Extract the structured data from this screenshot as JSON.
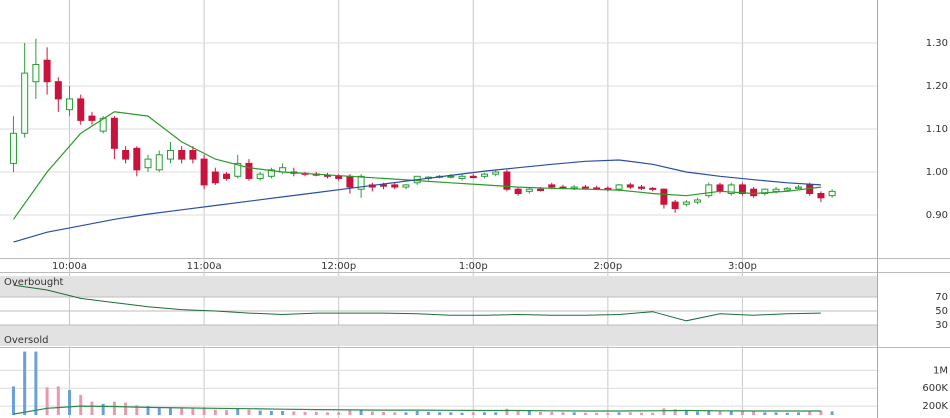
{
  "chart_data": [
    {
      "type": "candlestick",
      "x": [
        575,
        580,
        585,
        590,
        595,
        600,
        605,
        610,
        615,
        620,
        625,
        630,
        635,
        640,
        645,
        650,
        655,
        660,
        665,
        670,
        675,
        680,
        685,
        690,
        695,
        700,
        705,
        710,
        715,
        720,
        725,
        730,
        735,
        740,
        745,
        750,
        755,
        760,
        765,
        770,
        775,
        780,
        785,
        790,
        795,
        800,
        805,
        810,
        815,
        820,
        825,
        830,
        835,
        840,
        845,
        850,
        855,
        860,
        865,
        870,
        875,
        880,
        885,
        890,
        895,
        900,
        905,
        910,
        915,
        920,
        925,
        930,
        935,
        940
      ],
      "open": [
        1.02,
        1.09,
        1.21,
        1.26,
        1.21,
        1.145,
        1.17,
        1.13,
        1.095,
        1.125,
        1.05,
        1.055,
        1.01,
        1.005,
        1.03,
        1.05,
        1.05,
        1.03,
        1.0,
        0.995,
        0.99,
        1.02,
        0.985,
        0.99,
        1.0,
        1.0,
        0.997,
        0.995,
        0.993,
        0.99,
        0.99,
        0.96,
        0.97,
        0.97,
        0.97,
        0.965,
        0.975,
        0.985,
        0.99,
        0.99,
        0.985,
        0.99,
        0.99,
        0.995,
        1.0,
        0.96,
        0.955,
        0.96,
        0.97,
        0.965,
        0.962,
        0.965,
        0.963,
        0.962,
        0.96,
        0.97,
        0.965,
        0.962,
        0.96,
        0.93,
        0.925,
        0.93,
        0.945,
        0.97,
        0.95,
        0.97,
        0.96,
        0.95,
        0.955,
        0.958,
        0.962,
        0.97,
        0.95,
        0.945
      ],
      "high": [
        1.13,
        1.3,
        1.31,
        1.29,
        1.22,
        1.2,
        1.18,
        1.14,
        1.13,
        1.13,
        1.06,
        1.06,
        1.04,
        1.05,
        1.07,
        1.06,
        1.06,
        1.04,
        1.01,
        1.0,
        1.04,
        1.03,
        1.0,
        1.01,
        1.02,
        1.01,
        1.0,
        1.0,
        0.998,
        0.995,
        0.995,
        0.995,
        0.975,
        0.975,
        0.975,
        0.972,
        0.99,
        0.99,
        0.993,
        0.995,
        0.995,
        0.995,
        0.998,
        1.005,
        1.005,
        0.965,
        0.965,
        0.965,
        0.975,
        0.97,
        0.97,
        0.97,
        0.968,
        0.967,
        0.972,
        0.975,
        0.97,
        0.965,
        0.962,
        0.935,
        0.935,
        0.94,
        0.975,
        0.975,
        0.975,
        0.975,
        0.965,
        0.962,
        0.965,
        0.965,
        0.97,
        0.975,
        0.955,
        0.96
      ],
      "low": [
        1.0,
        1.08,
        1.17,
        1.18,
        1.14,
        1.13,
        1.11,
        1.11,
        1.09,
        1.03,
        1.02,
        0.99,
        1.0,
        1.0,
        1.02,
        1.02,
        1.02,
        0.96,
        0.97,
        0.98,
        0.985,
        0.98,
        0.98,
        0.985,
        0.995,
        0.99,
        0.99,
        0.99,
        0.985,
        0.98,
        0.95,
        0.94,
        0.955,
        0.96,
        0.96,
        0.96,
        0.97,
        0.98,
        0.985,
        0.985,
        0.98,
        0.985,
        0.985,
        0.99,
        0.955,
        0.945,
        0.95,
        0.955,
        0.96,
        0.96,
        0.958,
        0.96,
        0.958,
        0.955,
        0.955,
        0.96,
        0.958,
        0.955,
        0.915,
        0.905,
        0.92,
        0.925,
        0.94,
        0.95,
        0.945,
        0.945,
        0.94,
        0.945,
        0.95,
        0.955,
        0.96,
        0.945,
        0.93,
        0.94
      ],
      "close": [
        1.09,
        1.23,
        1.25,
        1.21,
        1.17,
        1.17,
        1.12,
        1.12,
        1.125,
        1.055,
        1.03,
        1.005,
        1.03,
        1.04,
        1.05,
        1.03,
        1.03,
        0.97,
        0.975,
        0.985,
        1.02,
        0.985,
        0.995,
        1.005,
        1.01,
        0.997,
        0.995,
        0.993,
        0.99,
        0.985,
        0.965,
        0.99,
        0.965,
        0.967,
        0.965,
        0.97,
        0.99,
        0.988,
        0.99,
        0.99,
        0.99,
        0.987,
        0.995,
        1.0,
        0.96,
        0.95,
        0.96,
        0.957,
        0.965,
        0.962,
        0.965,
        0.963,
        0.962,
        0.96,
        0.97,
        0.965,
        0.962,
        0.96,
        0.925,
        0.915,
        0.93,
        0.935,
        0.97,
        0.955,
        0.97,
        0.95,
        0.945,
        0.96,
        0.96,
        0.962,
        0.965,
        0.95,
        0.94,
        0.955
      ],
      "up_color": "#2e9a3a",
      "down_color": "#c8143c",
      "overlay_x": [
        575,
        590,
        605,
        620,
        635,
        650,
        665,
        680,
        695,
        710,
        725,
        740,
        755,
        770,
        785,
        800,
        815,
        830,
        845,
        860,
        875,
        890,
        905,
        920,
        935
      ],
      "overlays": [
        {
          "color": "#2a9a2a",
          "values": [
            0.89,
            1.0,
            1.09,
            1.14,
            1.13,
            1.07,
            1.03,
            1.01,
            1.0,
            0.995,
            0.99,
            0.985,
            0.98,
            0.975,
            0.97,
            0.965,
            0.962,
            0.96,
            0.958,
            0.95,
            0.945,
            0.955,
            0.95,
            0.955,
            0.965
          ]
        },
        {
          "color": "#2b4fa0",
          "values": [
            0.837,
            0.86,
            0.875,
            0.89,
            0.902,
            0.912,
            0.922,
            0.932,
            0.942,
            0.952,
            0.962,
            0.972,
            0.982,
            0.992,
            1.002,
            1.01,
            1.018,
            1.025,
            1.028,
            1.018,
            1.0,
            0.99,
            0.982,
            0.975,
            0.97
          ]
        }
      ],
      "xlim": [
        569,
        960
      ],
      "ylim": [
        0.8,
        1.4
      ],
      "yticks": [
        {
          "value": 0.9,
          "label": "0.90"
        },
        {
          "value": 1.0,
          "label": "1.00"
        },
        {
          "value": 1.1,
          "label": "1.10"
        },
        {
          "value": 1.2,
          "label": "1.20"
        },
        {
          "value": 1.3,
          "label": "1.30"
        }
      ],
      "xticks": [
        {
          "value": 600,
          "label": "10:00a"
        },
        {
          "value": 660,
          "label": "11:00a"
        },
        {
          "value": 720,
          "label": "12:00p"
        },
        {
          "value": 780,
          "label": "1:00p"
        },
        {
          "value": 840,
          "label": "2:00p"
        },
        {
          "value": 900,
          "label": "3:00p"
        }
      ],
      "grid": true
    },
    {
      "type": "line",
      "annotations": [
        "Overbought",
        "Oversold"
      ],
      "x": [
        575,
        590,
        605,
        620,
        635,
        650,
        665,
        680,
        695,
        710,
        725,
        740,
        755,
        770,
        785,
        800,
        815,
        830,
        845,
        860,
        875,
        890,
        905,
        920,
        935
      ],
      "values": [
        87,
        80,
        68,
        62,
        56,
        52,
        50,
        47,
        45,
        47,
        47,
        47,
        46,
        44,
        44,
        45,
        44,
        44,
        45,
        49,
        36,
        46,
        44,
        46,
        47
      ],
      "color": "#1d6b3a",
      "bands": [
        [
          70,
          100
        ],
        [
          0,
          30
        ]
      ],
      "ylim": [
        0,
        100
      ],
      "yticks": [
        30,
        50,
        70
      ]
    },
    {
      "type": "bar",
      "values": [
        640000,
        1420000,
        1420000,
        620000,
        640000,
        560000,
        450000,
        300000,
        250000,
        300000,
        280000,
        220000,
        200000,
        180000,
        170000,
        160000,
        150000,
        170000,
        120000,
        110000,
        140000,
        120000,
        100000,
        90000,
        90000,
        80000,
        70000,
        70000,
        60000,
        60000,
        120000,
        110000,
        80000,
        70000,
        60000,
        60000,
        90000,
        70000,
        60000,
        60000,
        50000,
        60000,
        60000,
        60000,
        140000,
        110000,
        90000,
        70000,
        70000,
        60000,
        60000,
        50000,
        50000,
        50000,
        60000,
        60000,
        50000,
        50000,
        150000,
        130000,
        100000,
        80000,
        110000,
        90000,
        90000,
        100000,
        80000,
        60000,
        60000,
        50000,
        60000,
        90000,
        100000,
        80000
      ],
      "up_color": "#6a9fd8",
      "down_color": "#e79aae",
      "average_x": [
        575,
        590,
        605,
        620,
        635,
        650,
        665,
        680,
        695,
        710,
        725,
        740,
        755,
        770,
        785,
        800,
        815,
        830,
        845,
        860,
        875,
        890,
        905,
        920,
        935
      ],
      "average": [
        20000,
        150000,
        200000,
        190000,
        170000,
        160000,
        150000,
        140000,
        130000,
        120000,
        115000,
        110000,
        110000,
        105000,
        100000,
        100000,
        95000,
        90000,
        90000,
        95000,
        100000,
        95000,
        90000,
        90000,
        90000
      ],
      "average_color": "#2a8a4a",
      "ylim": [
        0,
        1500000
      ],
      "yticks": [
        {
          "value": 200000,
          "label": "200K"
        },
        {
          "value": 600000,
          "label": "600K"
        },
        {
          "value": 1000000,
          "label": "1M"
        }
      ]
    }
  ]
}
